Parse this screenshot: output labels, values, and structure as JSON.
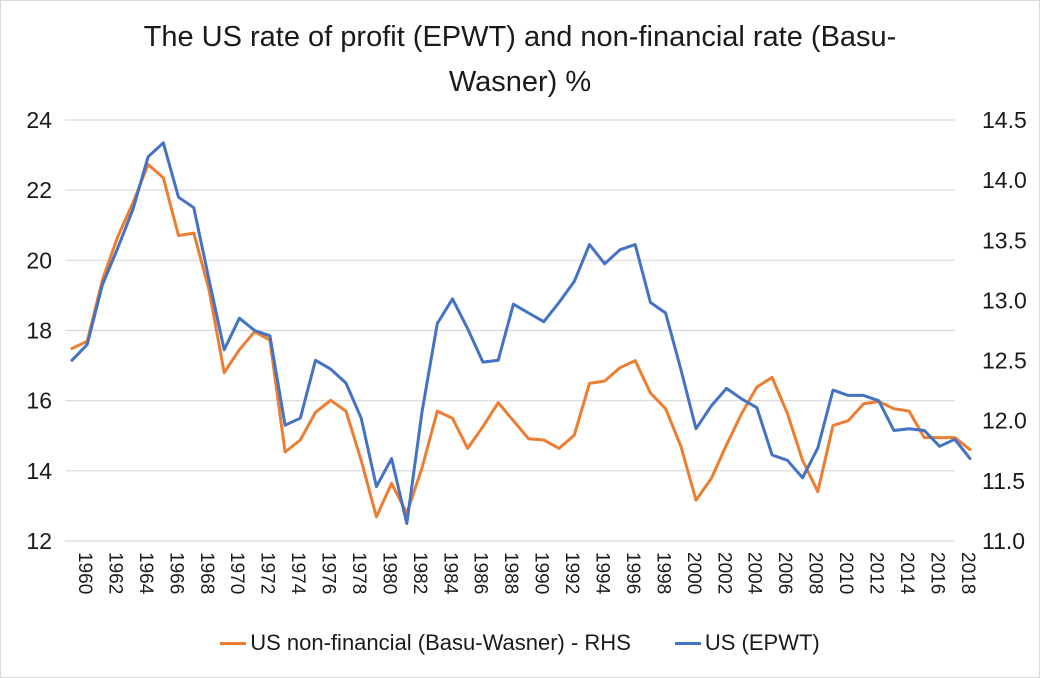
{
  "chart_data": {
    "type": "line",
    "title_line1": "The US rate of profit (EPWT) and non-financial rate (Basu-",
    "title_line2": "Wasner) %",
    "xlabel": "",
    "ylabel": "",
    "y_left": {
      "range": [
        12,
        24
      ],
      "ticks": [
        "24",
        "22",
        "20",
        "18",
        "16",
        "14",
        "12"
      ],
      "tick_values": [
        24,
        22,
        20,
        18,
        16,
        14,
        12
      ]
    },
    "y_right": {
      "range": [
        11.0,
        14.5
      ],
      "ticks": [
        "14.5",
        "14.0",
        "13.5",
        "13.0",
        "12.5",
        "12.0",
        "11.5",
        "11.0"
      ],
      "tick_values": [
        14.5,
        14.0,
        13.5,
        13.0,
        12.5,
        12.0,
        11.5,
        11.0
      ]
    },
    "grid": true,
    "legend_position": "bottom",
    "x": [
      1960,
      1961,
      1962,
      1963,
      1964,
      1965,
      1966,
      1967,
      1968,
      1969,
      1970,
      1971,
      1972,
      1973,
      1974,
      1975,
      1976,
      1977,
      1978,
      1979,
      1980,
      1981,
      1982,
      1983,
      1984,
      1985,
      1986,
      1987,
      1988,
      1989,
      1990,
      1991,
      1992,
      1993,
      1994,
      1995,
      1996,
      1997,
      1998,
      1999,
      2000,
      2001,
      2002,
      2003,
      2004,
      2005,
      2006,
      2007,
      2008,
      2009,
      2010,
      2011,
      2012,
      2013,
      2014,
      2015,
      2016,
      2017,
      2018,
      2019
    ],
    "x_tick_labels": [
      "1960",
      "1962",
      "1964",
      "1966",
      "1968",
      "1970",
      "1972",
      "1974",
      "1976",
      "1978",
      "1980",
      "1982",
      "1984",
      "1986",
      "1988",
      "1990",
      "1992",
      "1994",
      "1996",
      "1998",
      "2000",
      "2002",
      "2004",
      "2006",
      "2008",
      "2010",
      "2012",
      "2014",
      "2016",
      "2018"
    ],
    "series": [
      {
        "name": "US non-financial (Basu-Wasner) - RHS",
        "axis": "right",
        "color": "#ED7D31",
        "values": [
          12.6,
          12.66,
          13.17,
          13.53,
          13.81,
          14.13,
          14.02,
          13.54,
          13.56,
          13.09,
          12.4,
          12.59,
          12.74,
          12.67,
          11.74,
          11.84,
          12.07,
          12.17,
          12.08,
          11.67,
          11.2,
          11.48,
          11.23,
          11.61,
          12.08,
          12.02,
          11.77,
          11.95,
          12.15,
          12.0,
          11.85,
          11.84,
          11.77,
          11.88,
          12.31,
          12.33,
          12.44,
          12.5,
          12.23,
          12.1,
          11.79,
          11.34,
          11.52,
          11.8,
          12.06,
          12.28,
          12.36,
          12.06,
          11.67,
          11.41,
          11.96,
          12.0,
          12.14,
          12.16,
          12.1,
          12.08,
          11.86,
          11.86,
          11.86,
          11.76
        ]
      },
      {
        "name": "US (EPWT)",
        "axis": "left",
        "color": "#4472C4",
        "values": [
          17.15,
          17.6,
          19.3,
          20.35,
          21.45,
          22.95,
          23.35,
          21.8,
          21.5,
          19.45,
          17.45,
          18.35,
          18.0,
          17.85,
          15.3,
          15.5,
          17.15,
          16.9,
          16.5,
          15.5,
          13.55,
          14.35,
          12.5,
          15.7,
          18.2,
          18.9,
          18.05,
          17.1,
          17.15,
          18.75,
          18.5,
          18.25,
          18.8,
          19.4,
          20.45,
          19.9,
          20.3,
          20.45,
          18.8,
          18.5,
          16.9,
          15.2,
          15.85,
          16.35,
          16.05,
          15.8,
          14.45,
          14.3,
          13.8,
          14.65,
          16.3,
          16.15,
          16.15,
          16.0,
          15.15,
          15.2,
          15.15,
          14.7,
          14.9,
          14.35
        ]
      }
    ]
  }
}
